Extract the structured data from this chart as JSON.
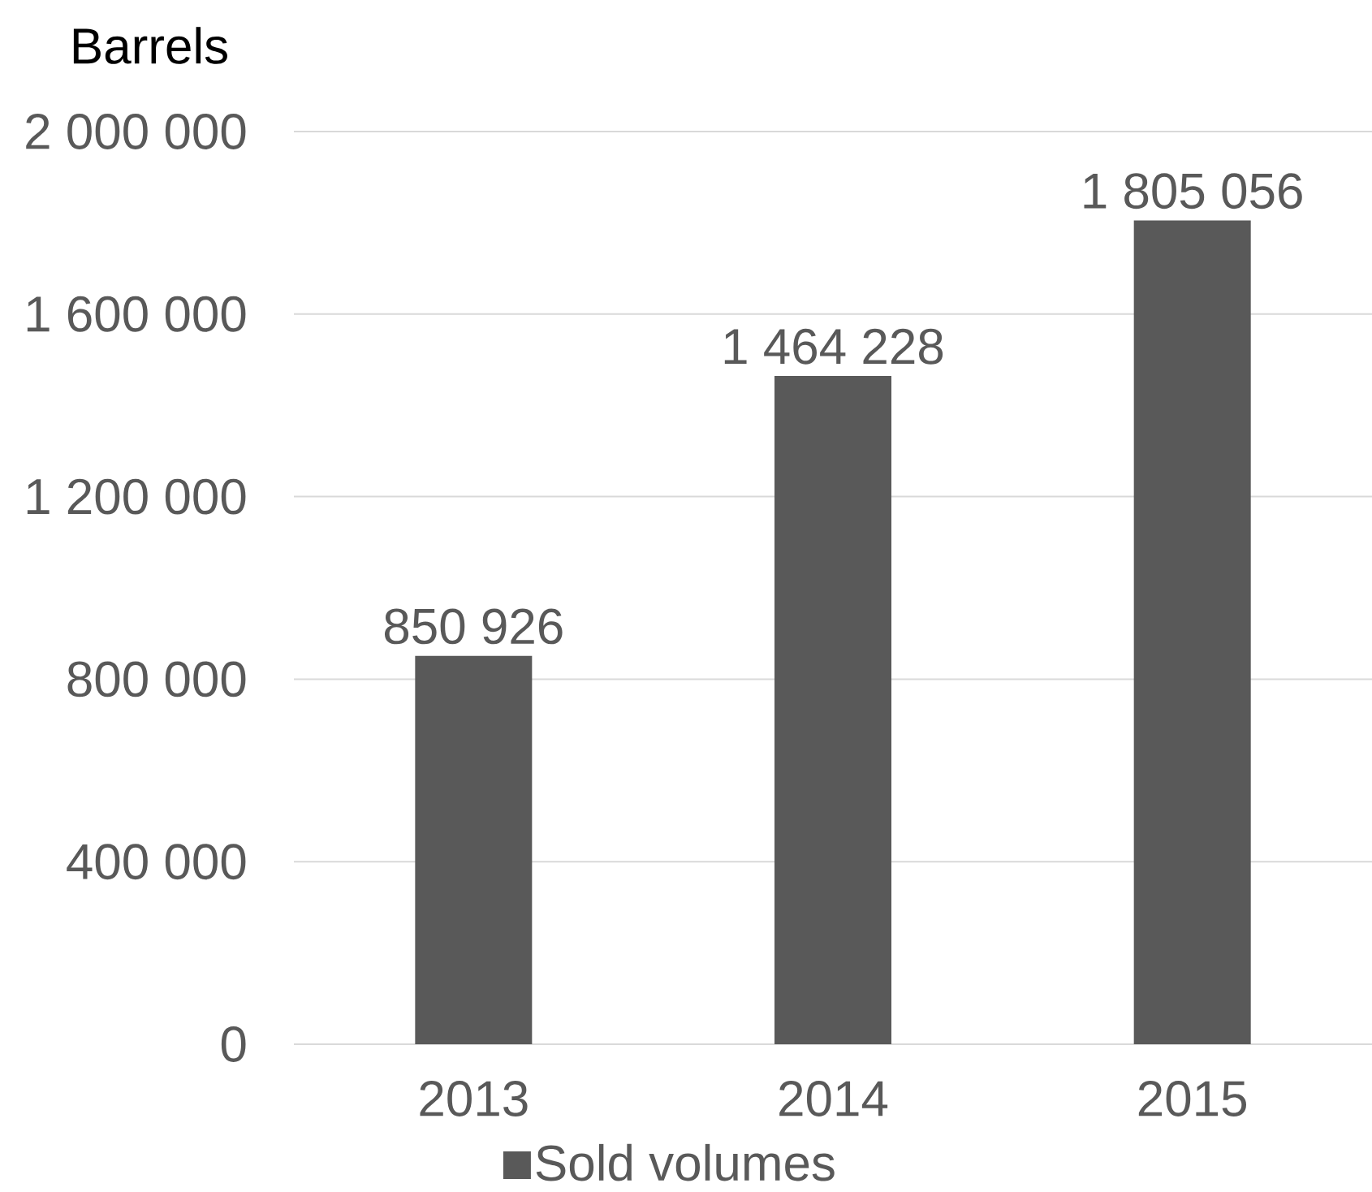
{
  "chart_data": {
    "type": "bar",
    "ylabel": "Barrels",
    "categories": [
      "2013",
      "2014",
      "2015"
    ],
    "series": [
      {
        "name": "Sold volumes",
        "color": "#595959",
        "values": [
          850926,
          1464228,
          1805056
        ],
        "value_labels": [
          "850 926",
          "1 464 228",
          "1 805 056"
        ]
      }
    ],
    "ylim": [
      0,
      2000000
    ],
    "yticks": [
      0,
      {
        "value": 400000,
        "label": "400 000"
      },
      {
        "value": 800000,
        "label": "800 000"
      },
      {
        "value": 1200000,
        "label": "1 200 000"
      },
      {
        "value": 1600000,
        "label": "1 600 000"
      },
      {
        "value": 2000000,
        "label": "2 000 000"
      }
    ],
    "grid": "y",
    "legend": "bottom"
  }
}
